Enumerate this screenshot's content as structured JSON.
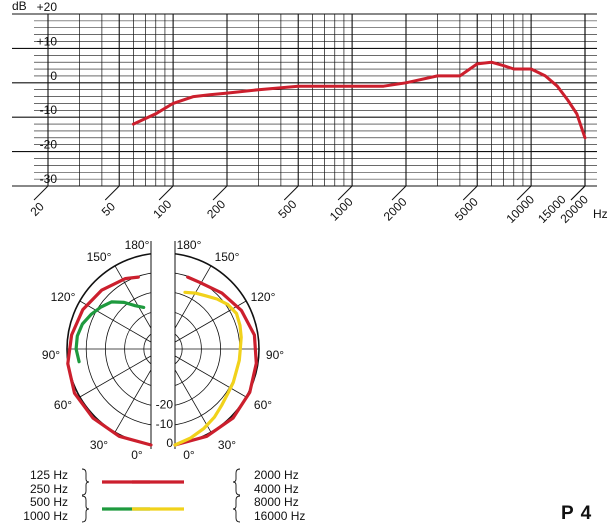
{
  "model_label": "P 4",
  "colors": {
    "red": "#cc1f2d",
    "green": "#1e9a3e",
    "yellow": "#f1d21b",
    "grid": "#111111"
  },
  "chart_data": [
    {
      "type": "line",
      "title": "",
      "xscale": "log",
      "xlabel": "Hz",
      "ylabel": "dB",
      "xlim": [
        20,
        20000
      ],
      "ylim": [
        -30,
        20
      ],
      "grid": true,
      "x_ticks": [
        20,
        50,
        100,
        200,
        500,
        1000,
        2000,
        5000,
        10000,
        15000,
        20000
      ],
      "x_tick_labels": [
        "20",
        "50",
        "100",
        "200",
        "500",
        "1000",
        "2000",
        "5000",
        "10000",
        "15000",
        "20000"
      ],
      "y_ticks": [
        20,
        10,
        0,
        -10,
        -20,
        -30
      ],
      "y_tick_labels": [
        "+20",
        "+10",
        "0",
        "-10",
        "-20",
        "-30"
      ],
      "series": [
        {
          "color": "#cc1f2d",
          "x": [
            60,
            80,
            100,
            130,
            160,
            200,
            300,
            500,
            700,
            1000,
            1500,
            2000,
            3000,
            4000,
            5000,
            6000,
            7000,
            8000,
            10000,
            12000,
            14000,
            16000,
            18000,
            20000
          ],
          "y": [
            -12,
            -9,
            -6,
            -4,
            -3.5,
            -3,
            -2,
            -1,
            -1,
            -1,
            -1,
            0,
            2,
            2,
            5.5,
            6,
            5,
            4,
            4,
            2,
            -1,
            -5,
            -9,
            -16
          ]
        }
      ]
    },
    {
      "type": "polar",
      "title": "",
      "angle_labels": [
        "0°",
        "30°",
        "60°",
        "90°",
        "120°",
        "150°",
        "180°"
      ],
      "radial_labels": [
        "0",
        "-10",
        "-20"
      ],
      "rlim": [
        -25,
        0
      ],
      "legend": {
        "left": [
          {
            "labels": [
              "125 Hz",
              "250 Hz"
            ],
            "color": "#cc1f2d"
          },
          {
            "labels": [
              "500 Hz",
              "1000 Hz"
            ],
            "color": "#1e9a3e"
          }
        ],
        "right": [
          {
            "labels": [
              "2000 Hz",
              "4000 Hz"
            ],
            "color": "#cc1f2d"
          },
          {
            "labels": [
              "8000 Hz",
              "16000 Hz"
            ],
            "color": "#f1d21b"
          }
        ]
      },
      "series": [
        {
          "side": "left",
          "color": "#cc1f2d",
          "angle": [
            0,
            20,
            40,
            60,
            80,
            100,
            120,
            140,
            160,
            170
          ],
          "r": [
            0,
            -0.8,
            -1.5,
            -2,
            -3,
            -4,
            -4.5,
            -5,
            -5.5,
            -6
          ]
        },
        {
          "side": "left",
          "color": "#1e9a3e",
          "angle": [
            80,
            90,
            100,
            110,
            120,
            130,
            140,
            150,
            160,
            170
          ],
          "r": [
            -6,
            -5.5,
            -5.5,
            -6,
            -7,
            -8,
            -9,
            -11,
            -13,
            -14
          ]
        },
        {
          "side": "right",
          "color": "#cc1f2d",
          "angle": [
            0,
            20,
            40,
            60,
            80,
            100,
            120,
            140,
            160,
            170
          ],
          "r": [
            0,
            -0.8,
            -1.5,
            -2.5,
            -3.5,
            -4,
            -5,
            -6,
            -6.5,
            -6
          ]
        },
        {
          "side": "right",
          "color": "#f1d21b",
          "angle": [
            0,
            10,
            20,
            30,
            40,
            50,
            60,
            70,
            80,
            90,
            100,
            110,
            120,
            130,
            140,
            150,
            160,
            170
          ],
          "r": [
            0,
            -1.5,
            -3,
            -4.5,
            -6,
            -7,
            -7.5,
            -8,
            -8,
            -8,
            -7.5,
            -7,
            -6.5,
            -7,
            -8,
            -9,
            -9.5,
            -10
          ]
        }
      ]
    }
  ]
}
